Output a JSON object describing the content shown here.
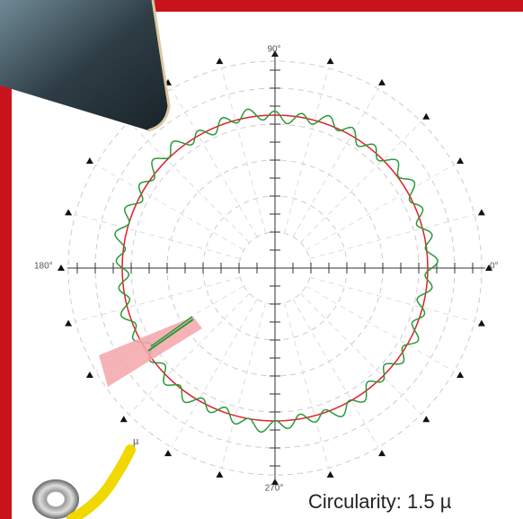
{
  "labels": {
    "deg90": "90°",
    "deg180": "180°",
    "deg0": "0°",
    "deg270": "270°",
    "probe": "µ"
  },
  "caption": "Circularity: 1.5 µ"
}
